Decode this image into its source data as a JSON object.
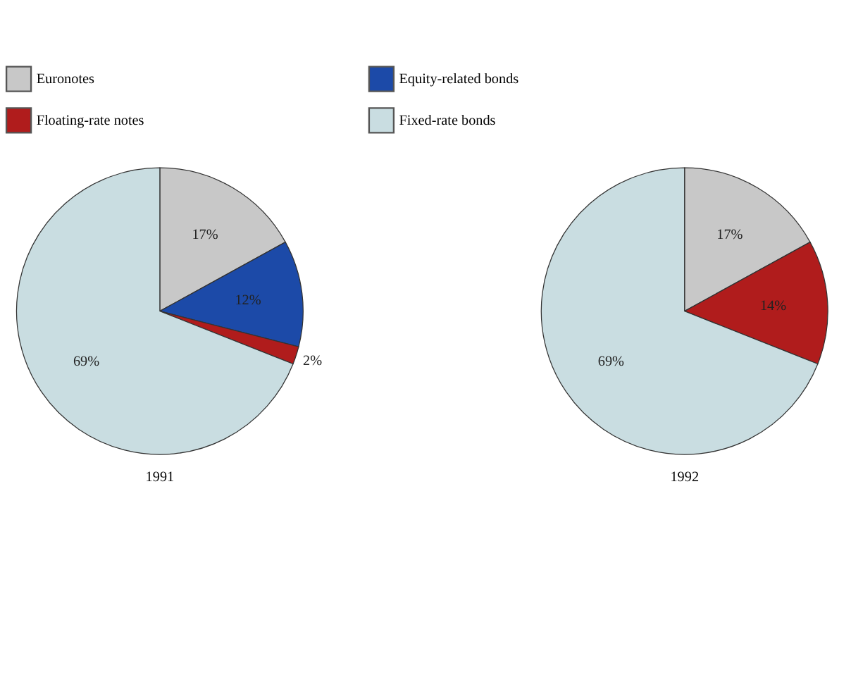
{
  "chart_data": [
    {
      "type": "pie",
      "title": "1991",
      "legend": "top",
      "categories": [
        "Euronotes",
        "Equity-related bonds",
        "Floating-rate notes",
        "Fixed-rate bonds"
      ],
      "values": [
        17,
        12,
        2,
        69
      ],
      "colors": [
        "#c8c8c8",
        "#1c4aa8",
        "#b01c1c",
        "#c9dde1"
      ],
      "value_labels": [
        "17%",
        "12%",
        "2%",
        "69%"
      ]
    },
    {
      "type": "pie",
      "title": "1992",
      "categories": [
        null,
        null,
        null
      ],
      "values": [
        17,
        14,
        69
      ],
      "colors": [
        "#c8c8c8",
        "#b01c1c",
        "#c9dde1"
      ],
      "value_labels": [
        "17%",
        "14%",
        "69%"
      ]
    }
  ]
}
